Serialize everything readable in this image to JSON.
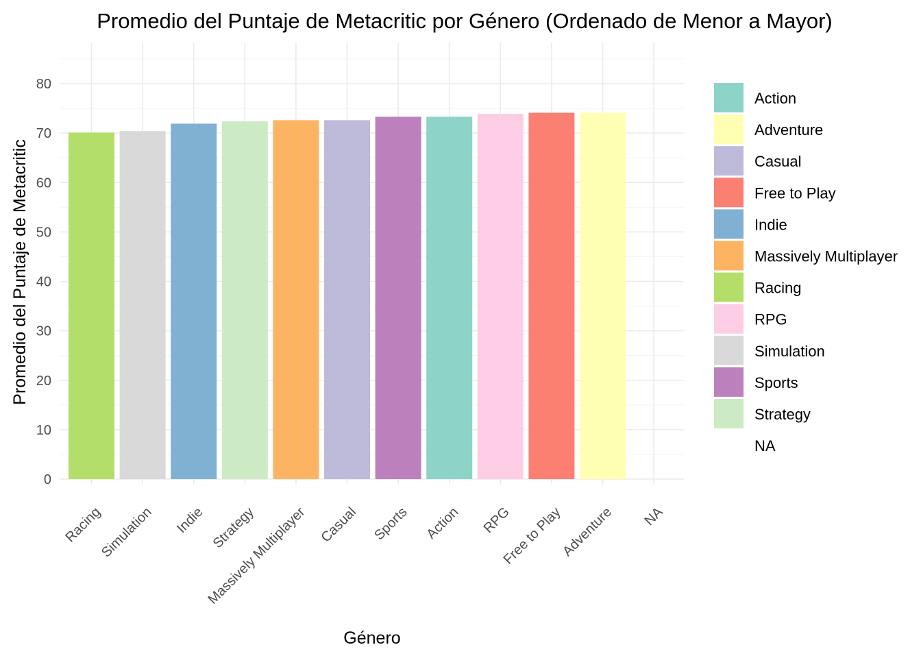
{
  "chart_data": {
    "type": "bar",
    "title": "Promedio del Puntaje de Metacritic por Género (Ordenado de Menor a Mayor)",
    "xlabel": "Género",
    "ylabel": "Promedio del Puntaje de Metacritic",
    "ylim": [
      0,
      85
    ],
    "yticks": [
      0,
      10,
      20,
      30,
      40,
      50,
      60,
      70,
      80
    ],
    "grid": true,
    "legend_position": "right",
    "categories": [
      "Racing",
      "Simulation",
      "Indie",
      "Strategy",
      "Massively Multiplayer",
      "Casual",
      "Sports",
      "Action",
      "RPG",
      "Free to Play",
      "Adventure",
      "NA"
    ],
    "values": [
      70.1,
      70.4,
      71.9,
      72.4,
      72.6,
      72.6,
      73.3,
      73.3,
      73.9,
      74.1,
      74.1,
      null
    ],
    "colors": {
      "Action": "#8dd3c7",
      "Adventure": "#ffffb3",
      "Casual": "#bebada",
      "Free to Play": "#fb8072",
      "Indie": "#80b1d3",
      "Massively Multiplayer": "#fdb462",
      "Racing": "#b3de69",
      "RPG": "#fccde5",
      "Simulation": "#d9d9d9",
      "Sports": "#bc80bd",
      "Strategy": "#ccebc5",
      "NA": ""
    },
    "legend": [
      "Action",
      "Adventure",
      "Casual",
      "Free to Play",
      "Indie",
      "Massively Multiplayer",
      "Racing",
      "RPG",
      "Simulation",
      "Sports",
      "Strategy",
      "NA"
    ]
  }
}
